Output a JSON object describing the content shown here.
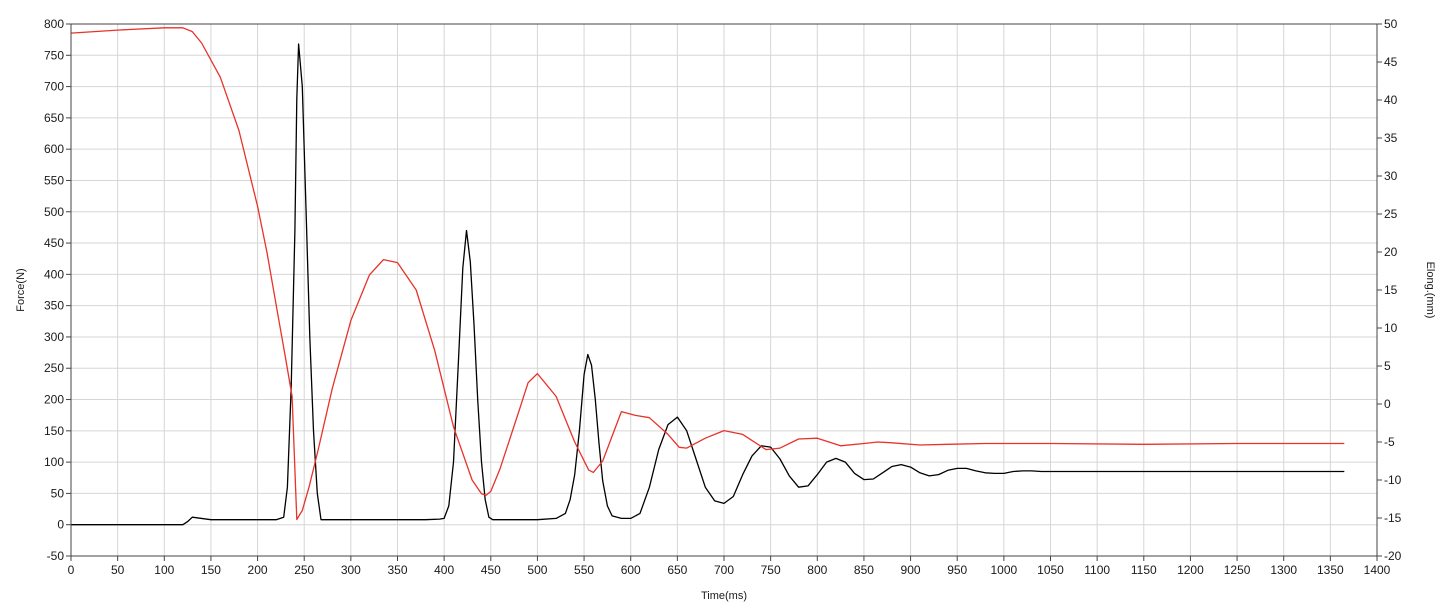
{
  "chart_data": {
    "type": "line",
    "title": "",
    "xlabel": "Time(ms)",
    "ylabel_left": "Force(N)",
    "ylabel_right": "Elong.(mm)",
    "xlim": [
      0,
      1400
    ],
    "ylim_left": [
      -50,
      800
    ],
    "ylim_right": [
      -20,
      50
    ],
    "x_ticks": [
      0,
      50,
      100,
      150,
      200,
      250,
      300,
      350,
      400,
      450,
      500,
      550,
      600,
      650,
      700,
      750,
      800,
      850,
      900,
      950,
      1000,
      1050,
      1100,
      1150,
      1200,
      1250,
      1300,
      1350,
      1400
    ],
    "y_left_ticks": [
      -50,
      0,
      50,
      100,
      150,
      200,
      250,
      300,
      350,
      400,
      450,
      500,
      550,
      600,
      650,
      700,
      750,
      800
    ],
    "y_right_ticks": [
      -20,
      -15,
      -10,
      -5,
      0,
      5,
      10,
      15,
      20,
      25,
      30,
      35,
      40,
      45,
      50
    ],
    "grid": true,
    "legend": "none",
    "series": [
      {
        "axis": "left",
        "color": "#000000",
        "x": [
          0,
          120,
          125,
          130,
          150,
          200,
          220,
          228,
          232,
          236,
          240,
          242,
          244,
          248,
          252,
          256,
          260,
          264,
          268,
          280,
          330,
          380,
          395,
          400,
          405,
          410,
          415,
          420,
          424,
          428,
          432,
          436,
          440,
          444,
          448,
          452,
          460,
          500,
          520,
          530,
          535,
          540,
          545,
          550,
          554,
          558,
          562,
          566,
          570,
          575,
          580,
          590,
          600,
          610,
          620,
          630,
          640,
          650,
          660,
          670,
          680,
          690,
          700,
          710,
          720,
          730,
          740,
          750,
          760,
          770,
          780,
          790,
          800,
          810,
          820,
          830,
          840,
          850,
          860,
          870,
          880,
          890,
          900,
          910,
          920,
          930,
          940,
          950,
          960,
          970,
          980,
          990,
          1000,
          1010,
          1020,
          1030,
          1040,
          1050,
          1100,
          1150,
          1200,
          1250,
          1300,
          1365
        ],
        "y": [
          0,
          0,
          5,
          12,
          8,
          8,
          8,
          12,
          60,
          220,
          470,
          680,
          768,
          700,
          500,
          300,
          150,
          50,
          8,
          8,
          8,
          8,
          9,
          10,
          30,
          100,
          250,
          410,
          470,
          420,
          320,
          200,
          100,
          40,
          12,
          8,
          8,
          8,
          10,
          18,
          40,
          80,
          150,
          240,
          272,
          255,
          200,
          130,
          70,
          30,
          14,
          10,
          10,
          18,
          60,
          120,
          160,
          172,
          150,
          105,
          60,
          38,
          34,
          45,
          80,
          110,
          126,
          124,
          105,
          78,
          60,
          62,
          80,
          100,
          106,
          100,
          82,
          72,
          73,
          83,
          93,
          96,
          92,
          83,
          78,
          80,
          87,
          90,
          90,
          86,
          83,
          82,
          82,
          85,
          86,
          86,
          85,
          85,
          85,
          85,
          85,
          85,
          85,
          85
        ]
      },
      {
        "axis": "right",
        "color": "#e8322a",
        "x": [
          0,
          50,
          100,
          120,
          130,
          140,
          160,
          180,
          200,
          210,
          220,
          230,
          237,
          242,
          248,
          255,
          265,
          280,
          300,
          320,
          335,
          350,
          370,
          390,
          410,
          430,
          440,
          445,
          450,
          460,
          480,
          490,
          500,
          520,
          540,
          555,
          560,
          570,
          590,
          605,
          620,
          640,
          652,
          660,
          680,
          700,
          720,
          745,
          760,
          780,
          800,
          825,
          850,
          865,
          880,
          910,
          940,
          980,
          1050,
          1150,
          1250,
          1365
        ],
        "y": [
          48.8,
          49.2,
          49.5,
          49.5,
          49.0,
          47.5,
          43,
          36,
          26,
          20,
          13,
          6,
          1,
          -15.2,
          -14,
          -11,
          -6,
          2,
          11,
          17,
          19,
          18.6,
          15,
          7,
          -3,
          -10,
          -11.8,
          -12,
          -11.5,
          -8.5,
          -1,
          2.8,
          4,
          1,
          -5,
          -8.7,
          -9,
          -7.5,
          -1,
          -1.5,
          -1.8,
          -4,
          -5.7,
          -5.8,
          -4.5,
          -3.5,
          -4,
          -6,
          -5.8,
          -4.6,
          -4.5,
          -5.5,
          -5.2,
          -5,
          -5.1,
          -5.4,
          -5.3,
          -5.2,
          -5.2,
          -5.3,
          -5.2,
          -5.2
        ]
      }
    ]
  }
}
